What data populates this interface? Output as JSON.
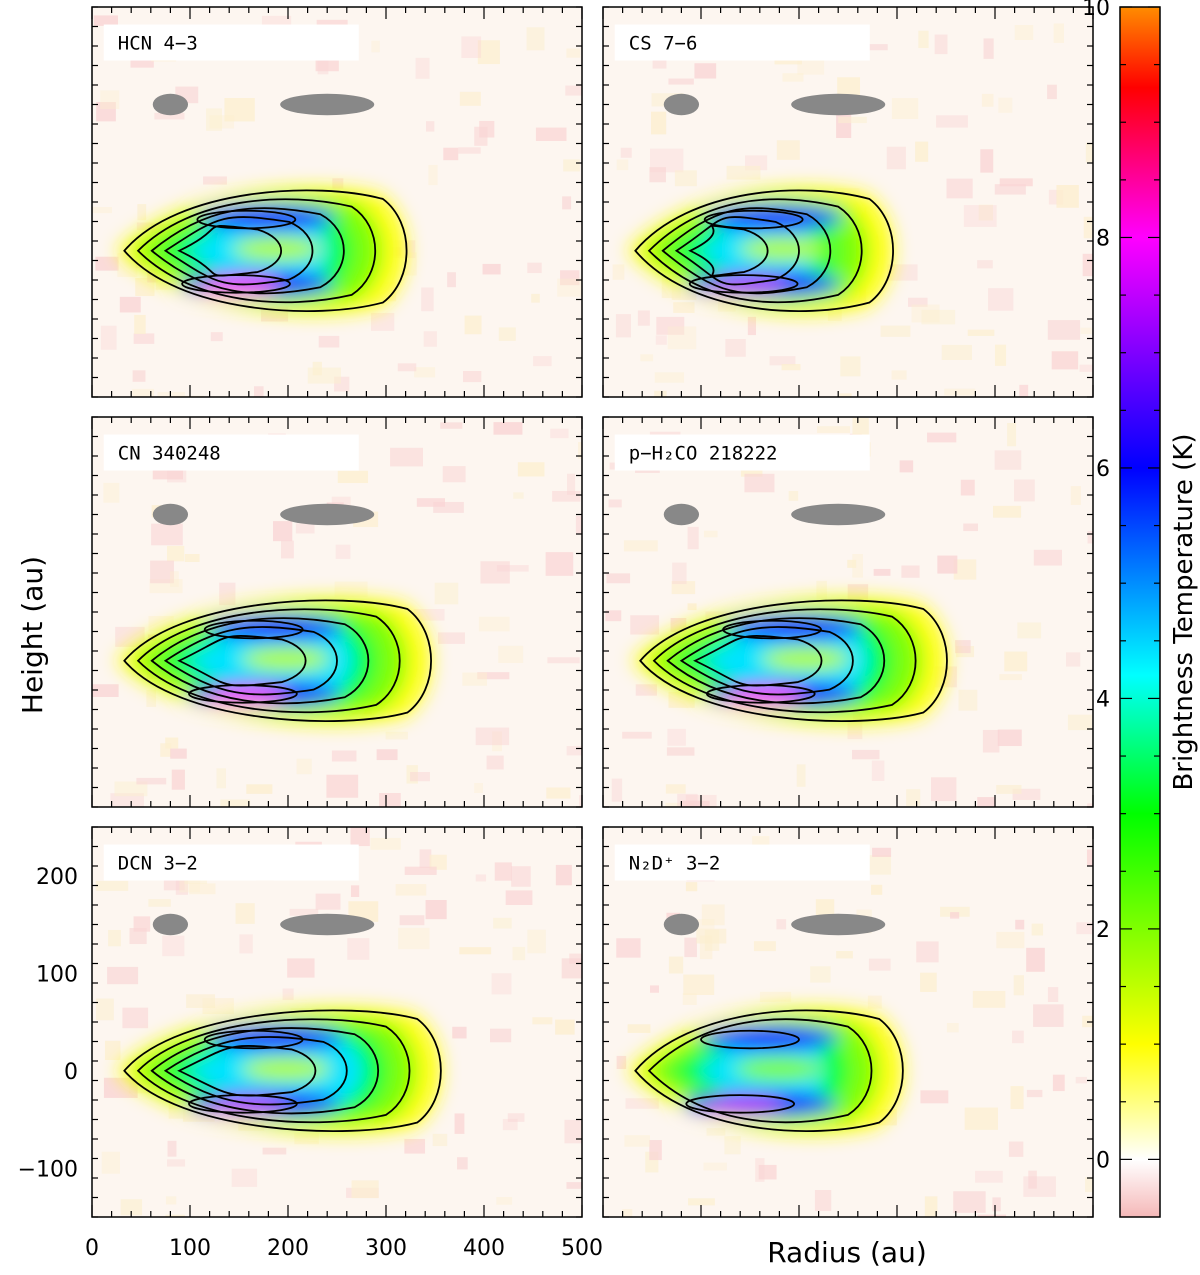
{
  "chart_data": {
    "type": "heatmap",
    "title": "",
    "xlabel": "Radius (au)",
    "ylabel": "Height (au)",
    "xlim": [
      0,
      500
    ],
    "ylim": [
      -150,
      250
    ],
    "xticks": [
      0,
      100,
      200,
      300,
      400,
      500
    ],
    "yticks": [
      -100,
      0,
      100,
      200
    ],
    "colorbar": {
      "label": "Brightness Temperature (K)",
      "range": [
        -0.5,
        10
      ],
      "ticks": [
        0,
        2,
        4,
        6,
        8,
        10
      ],
      "colors": [
        "#f5b8b8",
        "#ffffff",
        "#ffff00",
        "#00ff00",
        "#00ffff",
        "#0000ff",
        "#ff00ff",
        "#ff0000",
        "#ff8c00"
      ]
    },
    "beam_markers": [
      {
        "center_r": 80,
        "center_z": 150,
        "width_r": 36,
        "height_z": 22
      },
      {
        "center_r": 240,
        "center_z": 150,
        "width_r": 96,
        "height_z": 22
      }
    ],
    "panels": [
      {
        "label": "HCN 4−3",
        "col": 0,
        "row": 0,
        "peak_K": 8.0,
        "outer_r": 325,
        "core_r": 210,
        "variant": "standard"
      },
      {
        "label": "CS 7−6",
        "col": 1,
        "row": 0,
        "peak_K": 7.5,
        "outer_r": 300,
        "core_r": 205,
        "variant": "standard"
      },
      {
        "label": "CN 340248",
        "col": 0,
        "row": 1,
        "peak_K": 8.0,
        "outer_r": 350,
        "core_r": 220,
        "variant": "standard"
      },
      {
        "label": "p−H₂CO 218222",
        "col": 1,
        "row": 1,
        "peak_K": 8.0,
        "outer_r": 355,
        "core_r": 230,
        "variant": "wide"
      },
      {
        "label": "DCN 3−2",
        "col": 0,
        "row": 2,
        "peak_K": 7.5,
        "outer_r": 360,
        "core_r": 220,
        "variant": "dcn"
      },
      {
        "label": "N₂D⁺ 3−2",
        "col": 1,
        "row": 2,
        "peak_K": 7.5,
        "outer_r": 310,
        "core_r": 200,
        "variant": "n2dp"
      }
    ]
  }
}
